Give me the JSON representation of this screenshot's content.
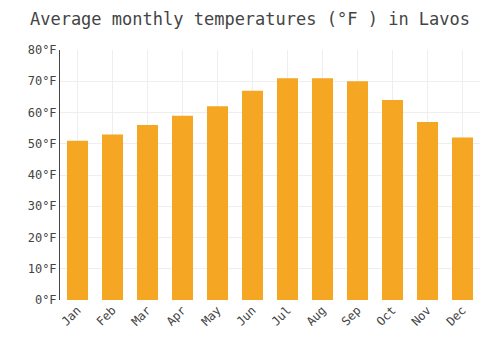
{
  "chart_data": {
    "type": "bar",
    "title": "Average monthly temperatures (°F ) in Lavos",
    "categories": [
      "Jan",
      "Feb",
      "Mar",
      "Apr",
      "May",
      "Jun",
      "Jul",
      "Aug",
      "Sep",
      "Oct",
      "Nov",
      "Dec"
    ],
    "values": [
      51,
      53,
      56,
      59,
      62,
      67,
      71,
      71,
      70,
      64,
      57,
      52
    ],
    "color": "#F5A623",
    "ylim": [
      0,
      80
    ],
    "yticks": [
      {
        "value": 0,
        "label": "0°F"
      },
      {
        "value": 10,
        "label": "10°F"
      },
      {
        "value": 20,
        "label": "20°F"
      },
      {
        "value": 30,
        "label": "30°F"
      },
      {
        "value": 40,
        "label": "40°F"
      },
      {
        "value": 50,
        "label": "50°F"
      },
      {
        "value": 60,
        "label": "60°F"
      },
      {
        "value": 70,
        "label": "70°F"
      },
      {
        "value": 80,
        "label": "80°F"
      }
    ],
    "grid": true
  }
}
